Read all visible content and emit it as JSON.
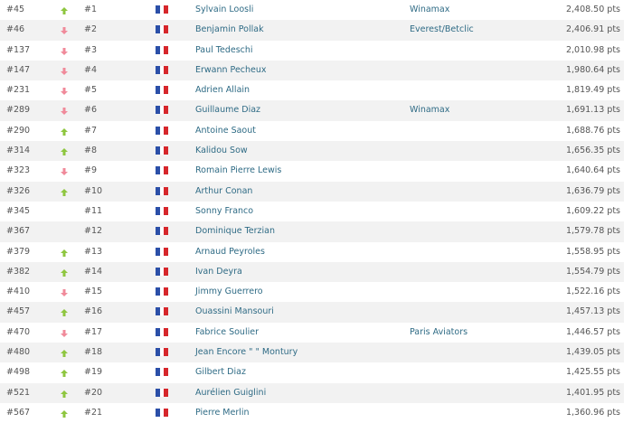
{
  "colors": {
    "up": "#8ec63f",
    "down": "#f08a9a",
    "link": "#2f6b85",
    "flag": [
      "#2b4fa8",
      "#ffffff",
      "#d6262b"
    ]
  },
  "rows": [
    {
      "world_rank": "#45",
      "trend": "up",
      "rank": "#1",
      "country": "France",
      "name": "Sylvain Loosli",
      "team": "Winamax",
      "points": "2,408.50 pts"
    },
    {
      "world_rank": "#46",
      "trend": "down",
      "rank": "#2",
      "country": "France",
      "name": "Benjamin Pollak",
      "team": "Everest/Betclic",
      "points": "2,406.91 pts"
    },
    {
      "world_rank": "#137",
      "trend": "down",
      "rank": "#3",
      "country": "France",
      "name": "Paul Tedeschi",
      "team": "",
      "points": "2,010.98 pts"
    },
    {
      "world_rank": "#147",
      "trend": "down",
      "rank": "#4",
      "country": "France",
      "name": "Erwann Pecheux",
      "team": "",
      "points": "1,980.64 pts"
    },
    {
      "world_rank": "#231",
      "trend": "down",
      "rank": "#5",
      "country": "France",
      "name": "Adrien Allain",
      "team": "",
      "points": "1,819.49 pts"
    },
    {
      "world_rank": "#289",
      "trend": "down",
      "rank": "#6",
      "country": "France",
      "name": "Guillaume Diaz",
      "team": "Winamax",
      "points": "1,691.13 pts"
    },
    {
      "world_rank": "#290",
      "trend": "up",
      "rank": "#7",
      "country": "France",
      "name": "Antoine Saout",
      "team": "",
      "points": "1,688.76 pts"
    },
    {
      "world_rank": "#314",
      "trend": "up",
      "rank": "#8",
      "country": "France",
      "name": "Kalidou Sow",
      "team": "",
      "points": "1,656.35 pts"
    },
    {
      "world_rank": "#323",
      "trend": "down",
      "rank": "#9",
      "country": "France",
      "name": "Romain Pierre Lewis",
      "team": "",
      "points": "1,640.64 pts"
    },
    {
      "world_rank": "#326",
      "trend": "up",
      "rank": "#10",
      "country": "France",
      "name": "Arthur Conan",
      "team": "",
      "points": "1,636.79 pts"
    },
    {
      "world_rank": "#345",
      "trend": "none",
      "rank": "#11",
      "country": "France",
      "name": "Sonny Franco",
      "team": "",
      "points": "1,609.22 pts"
    },
    {
      "world_rank": "#367",
      "trend": "none",
      "rank": "#12",
      "country": "France",
      "name": "Dominique Terzian",
      "team": "",
      "points": "1,579.78 pts"
    },
    {
      "world_rank": "#379",
      "trend": "up",
      "rank": "#13",
      "country": "France",
      "name": "Arnaud Peyroles",
      "team": "",
      "points": "1,558.95 pts"
    },
    {
      "world_rank": "#382",
      "trend": "up",
      "rank": "#14",
      "country": "France",
      "name": "Ivan Deyra",
      "team": "",
      "points": "1,554.79 pts"
    },
    {
      "world_rank": "#410",
      "trend": "down",
      "rank": "#15",
      "country": "France",
      "name": "Jimmy Guerrero",
      "team": "",
      "points": "1,522.16 pts"
    },
    {
      "world_rank": "#457",
      "trend": "up",
      "rank": "#16",
      "country": "France",
      "name": "Ouassini Mansouri",
      "team": "",
      "points": "1,457.13 pts"
    },
    {
      "world_rank": "#470",
      "trend": "down",
      "rank": "#17",
      "country": "France",
      "name": "Fabrice Soulier",
      "team": "Paris Aviators",
      "points": "1,446.57 pts"
    },
    {
      "world_rank": "#480",
      "trend": "up",
      "rank": "#18",
      "country": "France",
      "name": "Jean Encore \" \" Montury",
      "team": "",
      "points": "1,439.05 pts"
    },
    {
      "world_rank": "#498",
      "trend": "up",
      "rank": "#19",
      "country": "France",
      "name": "Gilbert Diaz",
      "team": "",
      "points": "1,425.55 pts"
    },
    {
      "world_rank": "#521",
      "trend": "up",
      "rank": "#20",
      "country": "France",
      "name": "Aurélien Guiglini",
      "team": "",
      "points": "1,401.95 pts"
    },
    {
      "world_rank": "#567",
      "trend": "up",
      "rank": "#21",
      "country": "France",
      "name": "Pierre Merlin",
      "team": "",
      "points": "1,360.96 pts"
    }
  ]
}
